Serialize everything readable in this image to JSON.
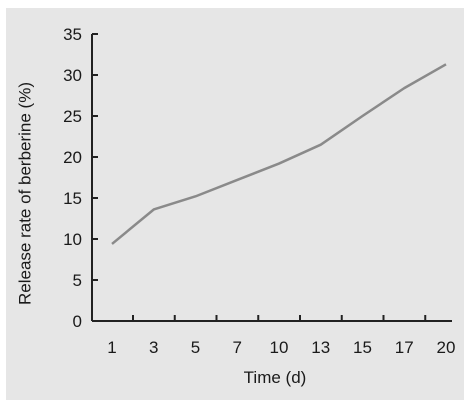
{
  "colors": {
    "panel_background": "#e6e6e6",
    "axis": "#222222",
    "line": "#8a8a8a",
    "text": "#1a1a1a"
  },
  "chart_data": {
    "type": "line",
    "title": "",
    "xlabel": "Time (d)",
    "ylabel": "Release rate of berberine (%)",
    "x_tick_labels": [
      "1",
      "3",
      "5",
      "7",
      "10",
      "13",
      "15",
      "17",
      "20"
    ],
    "y_tick_labels": [
      "0",
      "5",
      "10",
      "15",
      "20",
      "25",
      "30",
      "35"
    ],
    "ylim": [
      0,
      35
    ],
    "grid": false,
    "legend": "none",
    "series": [
      {
        "x": [
          "1",
          "3",
          "5",
          "7",
          "10",
          "13",
          "15",
          "17",
          "20"
        ],
        "values": [
          9.4,
          13.6,
          15.2,
          17.2,
          19.2,
          21.5,
          25.0,
          28.4,
          31.3
        ]
      }
    ]
  }
}
